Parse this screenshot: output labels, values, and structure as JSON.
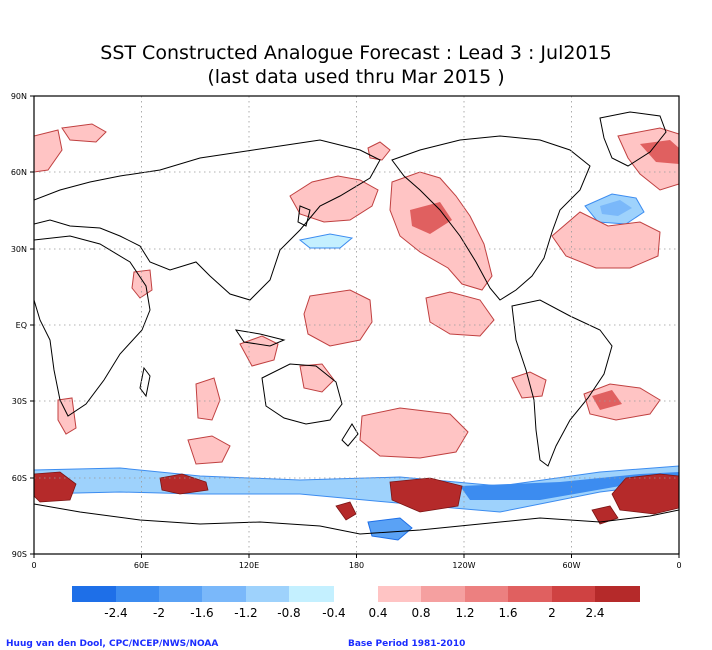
{
  "title": {
    "line1": "SST Constructed Analogue Forecast : Lead 3 : Jul2015",
    "line2": "(last data used thru Mar 2015 )"
  },
  "map": {
    "projection": "equirectangular, Pacific-centered",
    "lat_ticks": [
      "90N",
      "60N",
      "30N",
      "EQ",
      "30S",
      "60S",
      "90S"
    ],
    "lon_ticks": [
      "0",
      "60E",
      "120E",
      "180",
      "120W",
      "60W",
      "0"
    ],
    "gridlines": "dotted"
  },
  "colorbar": {
    "negative_colors": [
      "#1e6fe8",
      "#3c8cf0",
      "#5aa2f5",
      "#7ab8fa",
      "#9ed2fc",
      "#c4f0ff"
    ],
    "positive_colors": [
      "#ffc4c4",
      "#f5a0a0",
      "#ec8080",
      "#e06060",
      "#cf4242",
      "#b52a2a"
    ],
    "labels": [
      "-2.4",
      "-2",
      "-1.6",
      "-1.2",
      "-0.8",
      "-0.4",
      "0.4",
      "0.8",
      "1.2",
      "1.6",
      "2",
      "2.4"
    ]
  },
  "credits": {
    "left": "Huug van den Dool, CPC/NCEP/NWS/NOAA",
    "right": "Base Period 1981-2010"
  }
}
